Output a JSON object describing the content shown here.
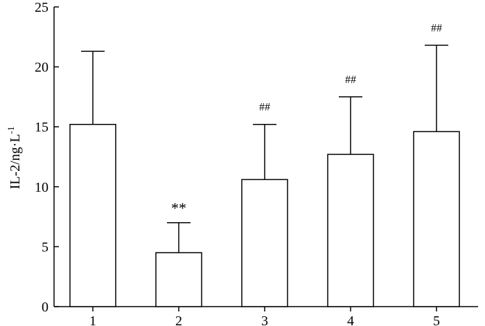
{
  "chart_data": {
    "type": "bar",
    "categories": [
      "1",
      "2",
      "3",
      "4",
      "5"
    ],
    "values": [
      15.2,
      4.5,
      10.6,
      12.7,
      14.6
    ],
    "error_upper": [
      21.3,
      7.0,
      15.2,
      17.5,
      21.8
    ],
    "annotations": [
      "",
      "**",
      "##",
      "##",
      "##"
    ],
    "ylabel": "IL-2/ng·L",
    "ylabel_superscript": "-1",
    "xlabel": "",
    "title": "",
    "ylim": [
      0,
      25
    ],
    "yticks": [
      0,
      5,
      10,
      15,
      20,
      25
    ],
    "grid": false,
    "legend": "none",
    "colors": {
      "bar_fill": "#ffffff",
      "bar_stroke": "#000000",
      "axis": "#000000"
    }
  }
}
